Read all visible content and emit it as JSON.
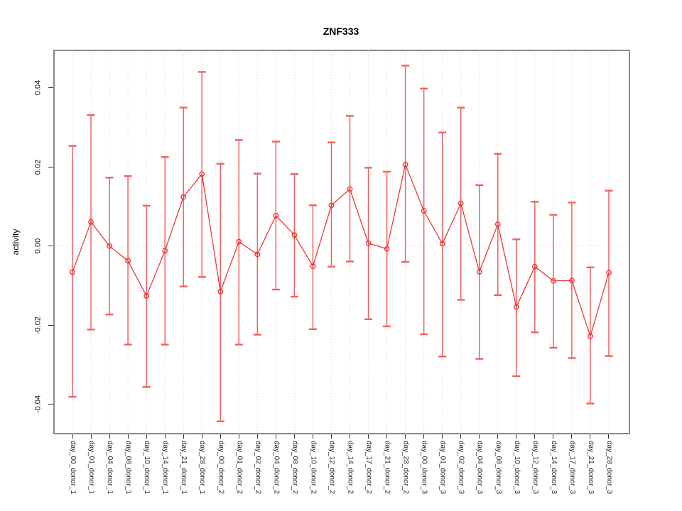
{
  "title": "ZNF333",
  "ylabel": "activity",
  "chart_data": {
    "type": "line",
    "title": "ZNF333",
    "xlabel": "",
    "ylabel": "activity",
    "ylim": [
      -0.047,
      0.0497
    ],
    "yticks": [
      0.04,
      0.02,
      0.0,
      -0.02,
      -0.04
    ],
    "ytick_labels": [
      "0.04",
      "0.02",
      "0.00",
      "-0.02",
      "-0.04"
    ],
    "grid": "vertical dotted gridline per category; dotted horizontal line at y=0",
    "legend": "none",
    "marker": "open-circle",
    "series_color": "#ee3838",
    "errorbar_color": "#f26060",
    "gridline_color": "#d6d6d6",
    "categories": [
      "day_00_donor_1",
      "day_01_donor_1",
      "day_04_donor_1",
      "day_08_donor_1",
      "day_10_donor_1",
      "day_14_donor_1",
      "day_21_donor_1",
      "day_28_donor_1",
      "day_00_donor_2",
      "day_01_donor_2",
      "day_02_donor_2",
      "day_04_donor_2",
      "day_08_donor_2",
      "day_10_donor_2",
      "day_12_donor_2",
      "day_14_donor_2",
      "day_17_donor_2",
      "day_21_donor_2",
      "day_28_donor_2",
      "day_00_donor_3",
      "day_01_donor_3",
      "day_02_donor_3",
      "day_04_donor_3",
      "day_08_donor_3",
      "day_10_donor_3",
      "day_12_donor_3",
      "day_14_donor_3",
      "day_17_donor_3",
      "day_21_donor_3",
      "day_28_donor_3"
    ],
    "values": [
      -0.0066,
      0.0061,
      0.0,
      -0.0037,
      -0.0126,
      -0.0012,
      0.0124,
      0.0182,
      -0.0115,
      0.0011,
      -0.0021,
      0.0077,
      0.0028,
      -0.0051,
      0.0103,
      0.0144,
      0.0007,
      -0.0007,
      0.0206,
      0.0089,
      0.0006,
      0.0108,
      -0.0065,
      0.0055,
      -0.0154,
      -0.0052,
      -0.0088,
      -0.0087,
      -0.0228,
      -0.0067
    ],
    "upper": [
      0.0253,
      0.0331,
      0.0173,
      0.0177,
      0.0102,
      0.0225,
      0.035,
      0.044,
      0.0208,
      0.0268,
      0.0183,
      0.0264,
      0.0182,
      0.0103,
      0.0262,
      0.0329,
      0.0198,
      0.0188,
      0.0456,
      0.0398,
      0.0287,
      0.035,
      0.0154,
      0.0233,
      0.0017,
      0.0112,
      0.0079,
      0.011,
      -0.0054,
      0.014
    ],
    "lower": [
      -0.0381,
      -0.0211,
      -0.0173,
      -0.0249,
      -0.0356,
      -0.0249,
      -0.0102,
      -0.0078,
      -0.0443,
      -0.0249,
      -0.0224,
      -0.011,
      -0.0128,
      -0.021,
      -0.0052,
      -0.0039,
      -0.0185,
      -0.0203,
      -0.004,
      -0.0223,
      -0.0279,
      -0.0136,
      -0.0285,
      -0.0124,
      -0.0329,
      -0.0218,
      -0.0257,
      -0.0283,
      -0.0398,
      -0.0278
    ]
  }
}
